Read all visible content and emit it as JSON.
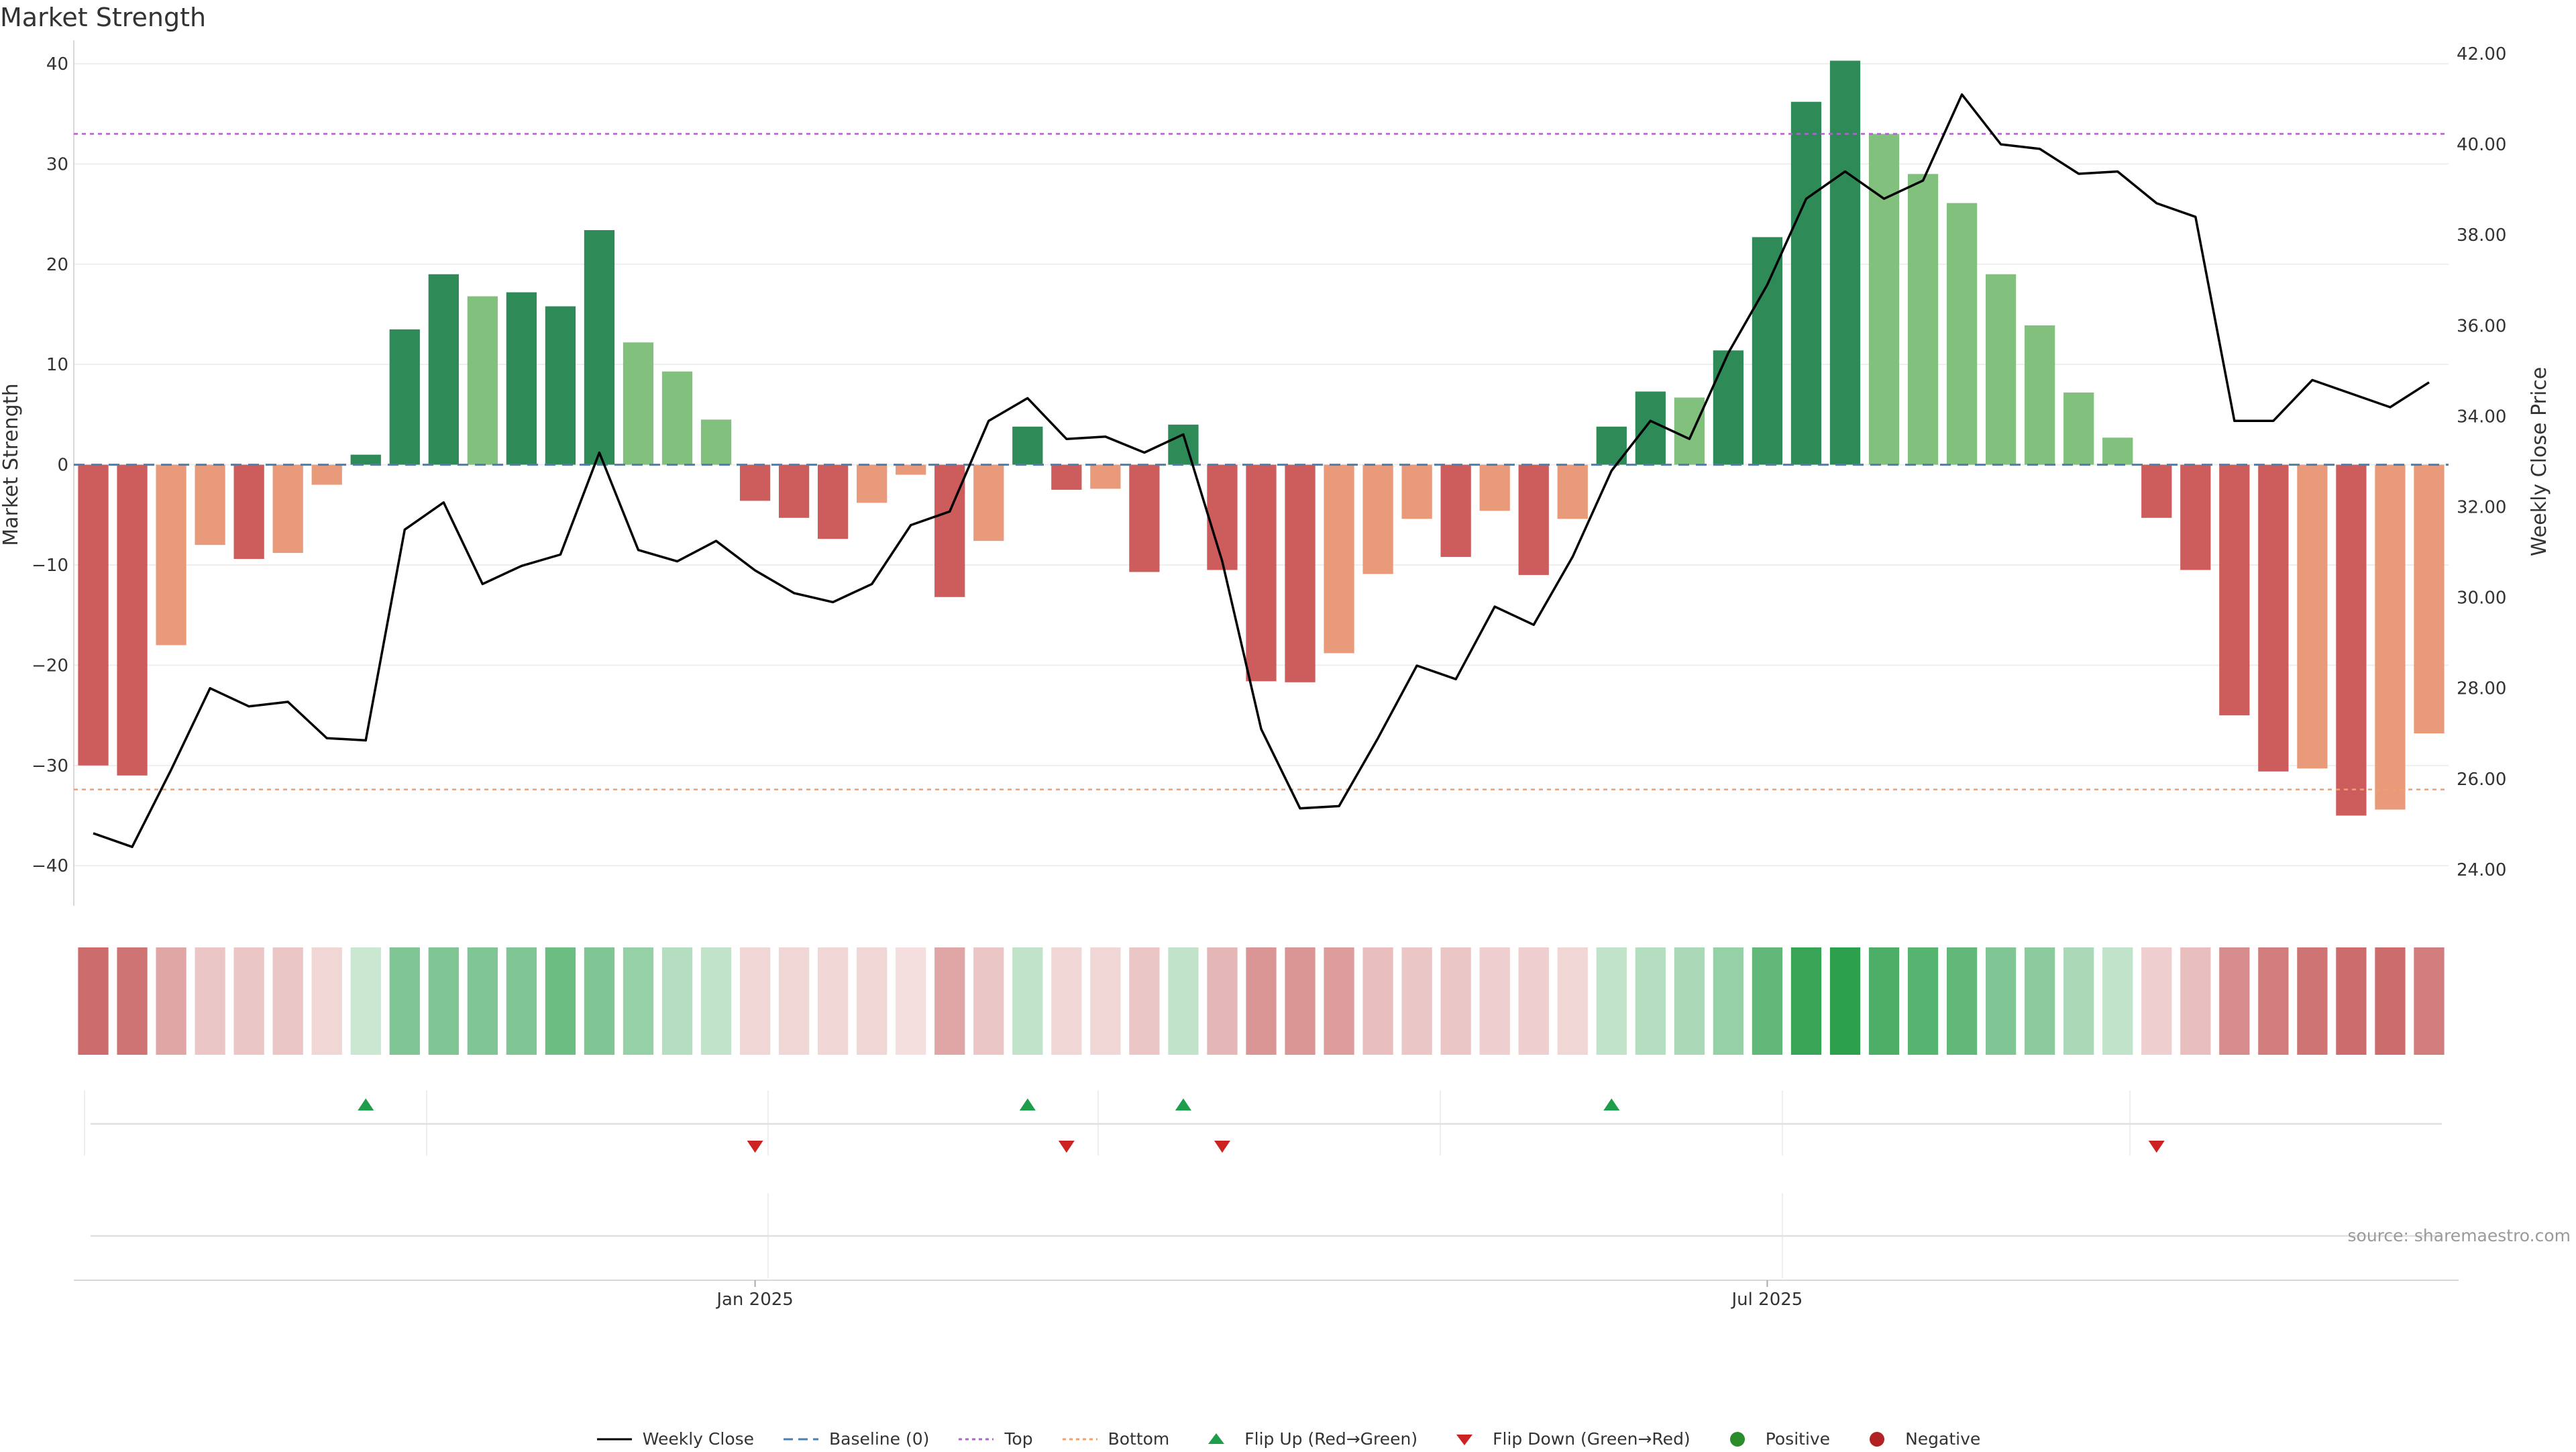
{
  "chart_title": "Market Strength",
  "source": "source: sharemaestro.com",
  "colors": {
    "strong_pos": "#2e8b57",
    "weak_pos": "#82c07e",
    "strong_neg": "#cd5c5c",
    "weak_neg": "#e99a7b",
    "close_line": "#000000",
    "baseline": "#4a7fb0",
    "top": "#b25fd0",
    "bottom": "#f0a070",
    "flip_up": "#1e9e4a",
    "flip_down": "#cc2222",
    "positive": "#2a8c2a",
    "negative": "#b22222"
  },
  "chart_data": {
    "type": "bar+line",
    "title": "Market Strength",
    "ylabel": "Market Strength",
    "y2label": "Weekly Close Price",
    "ylim": [
      -44,
      41
    ],
    "y2lim": [
      23.2,
      42.0
    ],
    "yticks": [
      "40",
      "30",
      "20",
      "10",
      "0",
      "−10",
      "−20",
      "−30",
      "−40"
    ],
    "y2ticks": [
      "42.00",
      "40.00",
      "38.00",
      "36.00",
      "34.00",
      "32.00",
      "30.00",
      "28.00",
      "26.00",
      "24.00"
    ],
    "xticks": [
      {
        "label": "Jan 2025",
        "index": 17.5
      },
      {
        "label": "Jul 2025",
        "index": 43.5
      }
    ],
    "reference_lines": {
      "baseline": 0,
      "top": 33,
      "bottom": -32.4
    },
    "strength": [
      -30,
      -31,
      -18,
      -8,
      -9.4,
      -8.8,
      -2,
      1,
      13.5,
      19,
      16.8,
      17.2,
      15.8,
      23.4,
      12.2,
      9.3,
      4.5,
      -3.6,
      -5.3,
      -7.4,
      -3.8,
      -1,
      -13.2,
      -7.6,
      3.8,
      -2.5,
      -2.4,
      -10.7,
      4,
      -10.5,
      -21.6,
      -21.7,
      -18.8,
      -10.9,
      -5.4,
      -9.2,
      -4.6,
      -11,
      -5.4,
      3.8,
      7.3,
      6.7,
      11.4,
      22.7,
      36.2,
      40.3,
      33,
      29,
      26.1,
      19,
      13.9,
      7.2,
      2.7,
      -5.3,
      -10.5,
      -25,
      -30.6,
      -30.3,
      -35,
      -34.4,
      -26.8
    ],
    "strength_shade": [
      "sn",
      "sn",
      "wn",
      "wn",
      "sn",
      "wn",
      "wn",
      "sp",
      "sp",
      "sp",
      "wp",
      "sp",
      "sp",
      "sp",
      "wp",
      "wp",
      "wp",
      "sn",
      "sn",
      "sn",
      "wn",
      "wn",
      "sn",
      "wn",
      "sp",
      "sn",
      "wn",
      "sn",
      "sp",
      "sn",
      "sn",
      "sn",
      "wn",
      "wn",
      "wn",
      "sn",
      "wn",
      "sn",
      "wn",
      "sp",
      "sp",
      "wp",
      "sp",
      "sp",
      "sp",
      "sp",
      "wp",
      "wp",
      "wp",
      "wp",
      "wp",
      "wp",
      "wp",
      "sn",
      "sn",
      "sn",
      "sn",
      "wn",
      "sn",
      "wn",
      "wn"
    ],
    "weekly_close": [
      24.8,
      24.5,
      26.2,
      28,
      27.6,
      27.7,
      26.9,
      26.85,
      31.5,
      32.1,
      30.3,
      30.7,
      30.95,
      33.2,
      31.05,
      30.8,
      31.25,
      30.6,
      30.1,
      29.9,
      30.3,
      31.6,
      31.9,
      33.9,
      34.4,
      33.5,
      33.55,
      33.2,
      33.6,
      30.8,
      27.1,
      25.35,
      25.4,
      26.9,
      28.5,
      28.2,
      29.8,
      29.4,
      30.9,
      32.8,
      33.9,
      33.5,
      35.4,
      36.9,
      38.8,
      39.4,
      38.8,
      39.2,
      41.1,
      40,
      39.9,
      39.35,
      39.4,
      38.7,
      38.4,
      33.9,
      33.9,
      34.8,
      34.5,
      34.2,
      34.75
    ],
    "strip_intensity": [
      0.9,
      0.85,
      0.55,
      0.35,
      0.35,
      0.35,
      0.25,
      0.25,
      0.6,
      0.6,
      0.6,
      0.6,
      0.7,
      0.6,
      0.5,
      0.35,
      0.3,
      0.25,
      0.25,
      0.25,
      0.25,
      0.2,
      0.55,
      0.35,
      0.3,
      0.25,
      0.25,
      0.35,
      0.3,
      0.45,
      0.65,
      0.65,
      0.6,
      0.4,
      0.35,
      0.35,
      0.3,
      0.3,
      0.25,
      0.3,
      0.35,
      0.4,
      0.5,
      0.75,
      0.95,
      1.0,
      0.85,
      0.8,
      0.75,
      0.6,
      0.55,
      0.4,
      0.3,
      0.3,
      0.4,
      0.7,
      0.8,
      0.85,
      0.9,
      0.9,
      0.8
    ],
    "strip_sign": [
      -1,
      -1,
      -1,
      -1,
      -1,
      -1,
      -1,
      1,
      1,
      1,
      1,
      1,
      1,
      1,
      1,
      1,
      1,
      -1,
      -1,
      -1,
      -1,
      -1,
      -1,
      -1,
      1,
      -1,
      -1,
      -1,
      1,
      -1,
      -1,
      -1,
      -1,
      -1,
      -1,
      -1,
      -1,
      -1,
      -1,
      1,
      1,
      1,
      1,
      1,
      1,
      1,
      1,
      1,
      1,
      1,
      1,
      1,
      1,
      -1,
      -1,
      -1,
      -1,
      -1,
      -1,
      -1,
      -1
    ],
    "flip_up_indices": [
      7,
      24,
      28,
      39
    ],
    "flip_down_indices": [
      17,
      25,
      29,
      53
    ]
  },
  "legend": [
    {
      "key": "close",
      "label": "Weekly Close"
    },
    {
      "key": "baseline",
      "label": "Baseline (0)"
    },
    {
      "key": "top",
      "label": "Top"
    },
    {
      "key": "bottom",
      "label": "Bottom"
    },
    {
      "key": "flip_up",
      "label": "Flip Up (Red→Green)"
    },
    {
      "key": "flip_down",
      "label": "Flip Down (Green→Red)"
    },
    {
      "key": "positive",
      "label": "Positive"
    },
    {
      "key": "negative",
      "label": "Negative"
    }
  ]
}
